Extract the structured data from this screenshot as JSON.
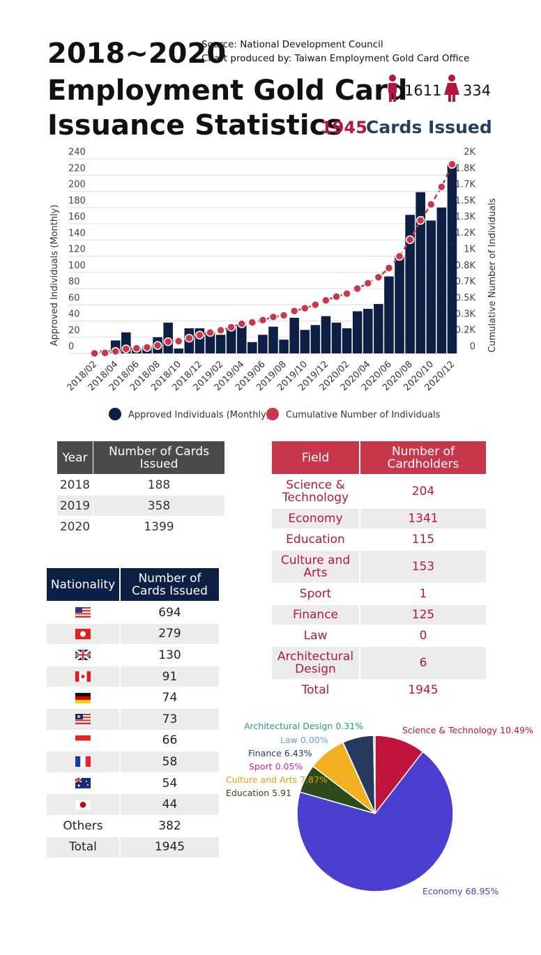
{
  "header": {
    "title_line1": "2018~2020",
    "title_line2": "Employment Gold Card",
    "title_line3": "Issuance Statistics",
    "source": "Source: National Development Council",
    "producer": "Chart produced by: Taiwan Employment Gold Card Office",
    "male": 1611,
    "female": 334,
    "total": 1945,
    "total_label": "Cards Issued"
  },
  "chart_data": [
    {
      "type": "bar",
      "y_label": "Approved Individuals (Monthly)",
      "y2_label": "Cumulative Number of Individuals",
      "categories": [
        "2018/02",
        null,
        "2018/04",
        null,
        "2018/06",
        null,
        "2018/08",
        null,
        "2018/10",
        null,
        "2018/12",
        null,
        "2019/02",
        null,
        "2019/04",
        null,
        "2019/06",
        null,
        "2019/08",
        null,
        "2019/10",
        null,
        "2019/12",
        null,
        "2020/02",
        null,
        "2020/04",
        null,
        "2020/06",
        null,
        "2020/08",
        null,
        "2020/10",
        null,
        "2020/12"
      ],
      "series": [
        {
          "name": "Approved Individuals (Monthly)",
          "color": "#0d1f45",
          "type": "bar",
          "values": [
            1,
            4,
            16,
            26,
            6,
            9,
            20,
            38,
            6,
            31,
            31,
            27,
            23,
            32,
            35,
            14,
            23,
            33,
            17,
            44,
            29,
            35,
            46,
            38,
            31,
            52,
            55,
            61,
            95,
            120,
            171,
            199,
            164,
            180,
            233
          ]
        },
        {
          "name": "Cumulative Number of Individuals",
          "color": "#c8374c",
          "type": "line",
          "axis": "y2",
          "values": [
            1,
            5,
            21,
            47,
            53,
            62,
            82,
            120,
            126,
            157,
            188,
            215,
            238,
            270,
            305,
            319,
            342,
            375,
            392,
            436,
            465,
            500,
            546,
            584,
            615,
            667,
            722,
            783,
            878,
            998,
            1169,
            1368,
            1532,
            1712,
            1945
          ]
        }
      ],
      "ylim": [
        0,
        240
      ],
      "yticks": [
        0,
        20,
        40,
        60,
        80,
        100,
        120,
        140,
        160,
        180,
        200,
        220,
        240
      ],
      "y2lim": [
        0,
        2000
      ],
      "y2ticks": [
        0,
        {
          "value": 166.67,
          "label": "0.2K"
        },
        {
          "value": 333.33,
          "label": "0.3K"
        },
        {
          "value": 500,
          "label": "0.5K"
        },
        {
          "value": 666.67,
          "label": "0.7K"
        },
        {
          "value": 833.33,
          "label": "0.8K"
        },
        {
          "value": 1000,
          "label": "1K"
        },
        {
          "value": 1166.67,
          "label": "1.2K"
        },
        {
          "value": 1333.33,
          "label": "1.3K"
        },
        {
          "value": 1500,
          "label": "1.5K"
        },
        {
          "value": 1666.67,
          "label": "1.7K"
        },
        {
          "value": 1833.33,
          "label": "1.8K"
        },
        {
          "value": 2000,
          "label": "2K"
        }
      ],
      "grid": true
    },
    {
      "type": "pie",
      "categories": [
        "Science & Technology",
        "Economy",
        "Education",
        "Culture and Arts",
        "Sport",
        "Finance",
        "Law",
        "Architectural Design"
      ],
      "values": [
        10.49,
        68.95,
        5.91,
        7.87,
        0.05,
        6.43,
        0,
        0.31
      ],
      "value_labels": [
        "10.49%",
        "68.95%",
        "5.91",
        "7.87%",
        "0.05%",
        "6.43%",
        "0.00%",
        "0.31%"
      ],
      "colors": [
        "#c0143c",
        "#4a3fcf",
        "#2d4a1a",
        "#f0b020",
        "#d020c0",
        "#263a5e",
        "#6aa0c0",
        "#20a080"
      ]
    }
  ],
  "year_table": {
    "columns": [
      "Year",
      "Number of Cards Issued"
    ],
    "rows": [
      [
        "2018",
        188
      ],
      [
        "2019",
        358
      ],
      [
        "2020",
        1399
      ]
    ]
  },
  "field_table": {
    "columns": [
      "Field",
      "Number of Cardholders"
    ],
    "rows": [
      [
        "Science & Technology",
        204
      ],
      [
        "Economy",
        1341
      ],
      [
        "Education",
        115
      ],
      [
        "Culture and Arts",
        153
      ],
      [
        "Sport",
        1
      ],
      [
        "Finance",
        125
      ],
      [
        "Law",
        0
      ],
      [
        "Architectural Design",
        6
      ],
      [
        "Total",
        1945
      ]
    ]
  },
  "nationality_table": {
    "columns": [
      "Nationality",
      "Number of Cards Issued"
    ],
    "rows": [
      {
        "count": 694
      },
      {
        "count": 279
      },
      {
        "count": 130
      },
      {
        "count": 91
      },
      {
        "count": 74
      },
      {
        "count": 73
      },
      {
        "count": 66
      },
      {
        "count": 58
      },
      {
        "count": 54
      },
      {
        "count": 44
      },
      {
        "label": "Others",
        "count": 382
      },
      {
        "label": "Total",
        "count": 1945
      }
    ]
  }
}
